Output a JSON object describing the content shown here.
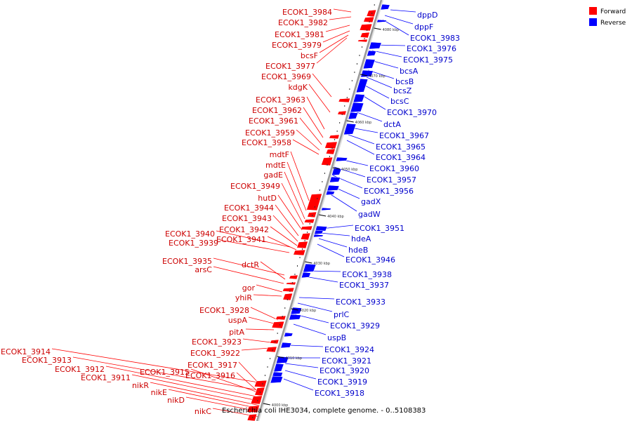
{
  "caption": "Escherichia coli IHE3034, complete genome. - 0..5108383",
  "legend": [
    {
      "label": "Forward",
      "color": "#ff0000"
    },
    {
      "label": "Reverse",
      "color": "#0000ff"
    }
  ],
  "colors": {
    "forward": "#ff0000",
    "reverse": "#0000ff",
    "forward_text": "#cc0000",
    "reverse_text": "#0000cc",
    "backbone": "#999999"
  },
  "ticks": [
    "4080 kbp",
    "4070 kbp",
    "4060 kbp",
    "4050 kbp",
    "4040 kbp",
    "4030 kbp",
    "4020 kbp",
    "4010 kbp",
    "4000 kbp"
  ],
  "forward_genes": [
    "ECOK1_3984",
    "ECOK1_3982",
    "ECOK1_3981",
    "ECOK1_3979",
    "bcsF",
    "ECOK1_3977",
    "ECOK1_3969",
    "kdgK",
    "ECOK1_3963",
    "ECOK1_3962",
    "ECOK1_3961",
    "ECOK1_3959",
    "ECOK1_3958",
    "mdtF",
    "mdtE",
    "gadE",
    "ECOK1_3949",
    "hutD",
    "ECOK1_3944",
    "ECOK1_3943",
    "ECOK1_3942",
    "ECOK1_3940",
    "ECOK1_3941",
    "ECOK1_3939",
    "ECOK1_3935",
    "dctR",
    "arsC",
    "gor",
    "yhiR",
    "ECOK1_3928",
    "uspA",
    "pitA",
    "ECOK1_3923",
    "ECOK1_3922",
    "ECOK1_3914",
    "ECOK1_3917",
    "ECOK1_3913",
    "ECOK1_3915",
    "ECOK1_3916",
    "ECOK1_3912",
    "ECOK1_3911",
    "nikR",
    "nikE",
    "nikD",
    "nikC"
  ],
  "reverse_genes": [
    "dppD",
    "dppF",
    "ECOK1_3983",
    "ECOK1_3976",
    "ECOK1_3975",
    "bcsA",
    "bcsB",
    "bcsZ",
    "bcsC",
    "ECOK1_3970",
    "dctA",
    "ECOK1_3967",
    "ECOK1_3965",
    "ECOK1_3964",
    "ECOK1_3960",
    "ECOK1_3957",
    "ECOK1_3956",
    "gadX",
    "gadW",
    "ECOK1_3951",
    "hdeA",
    "hdeB",
    "ECOK1_3946",
    "ECOK1_3938",
    "ECOK1_3937",
    "ECOK1_3933",
    "prlC",
    "ECOK1_3929",
    "uspB",
    "ECOK1_3924",
    "ECOK1_3921",
    "ECOK1_3920",
    "ECOK1_3919",
    "ECOK1_3918"
  ]
}
